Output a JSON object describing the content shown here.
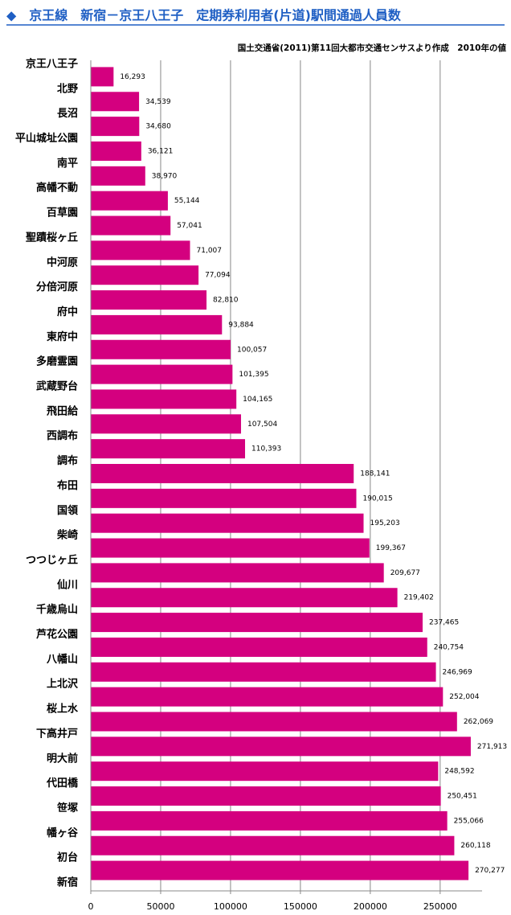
{
  "chart_data": {
    "type": "bar",
    "orientation": "horizontal",
    "title": "◆　京王線　新宿－京王八王子　定期券利用者(片道)駅間通過人員数",
    "subtitle": "国土交通省(2011)第11回大都市交通センサスより作成　2010年の値",
    "stations": [
      "京王八王子",
      "北野",
      "長沼",
      "平山城址公園",
      "南平",
      "高幡不動",
      "百草園",
      "聖蹟桜ヶ丘",
      "中河原",
      "分倍河原",
      "府中",
      "東府中",
      "多磨霊園",
      "武蔵野台",
      "飛田給",
      "西調布",
      "調布",
      "布田",
      "国領",
      "柴崎",
      "つつじヶ丘",
      "仙川",
      "千歳烏山",
      "芦花公園",
      "八幡山",
      "上北沢",
      "桜上水",
      "下高井戸",
      "明大前",
      "代田橋",
      "笹塚",
      "幡ヶ谷",
      "初台",
      "新宿"
    ],
    "values": [
      16293,
      34539,
      34680,
      36121,
      38970,
      55144,
      57041,
      71007,
      77094,
      82810,
      93884,
      100057,
      101395,
      104165,
      107504,
      110393,
      188141,
      190015,
      195203,
      199367,
      209677,
      219402,
      237465,
      240754,
      246969,
      252004,
      262069,
      271913,
      248592,
      250451,
      255066,
      260118,
      270277
    ],
    "value_labels": [
      "16,293",
      "34,539",
      "34,680",
      "36,121",
      "38,970",
      "55,144",
      "57,041",
      "71,007",
      "77,094",
      "82,810",
      "93,884",
      "100,057",
      "101,395",
      "104,165",
      "107,504",
      "110,393",
      "188,141",
      "190,015",
      "195,203",
      "199,367",
      "209,677",
      "219,402",
      "237,465",
      "240,754",
      "246,969",
      "252,004",
      "262,069",
      "271,913",
      "248,592",
      "250,451",
      "255,066",
      "260,118",
      "270,277"
    ],
    "color": "#d4007f",
    "xlim": [
      0,
      280000
    ],
    "xticks": [
      0,
      50000,
      100000,
      150000,
      200000,
      250000
    ],
    "grid": true
  }
}
